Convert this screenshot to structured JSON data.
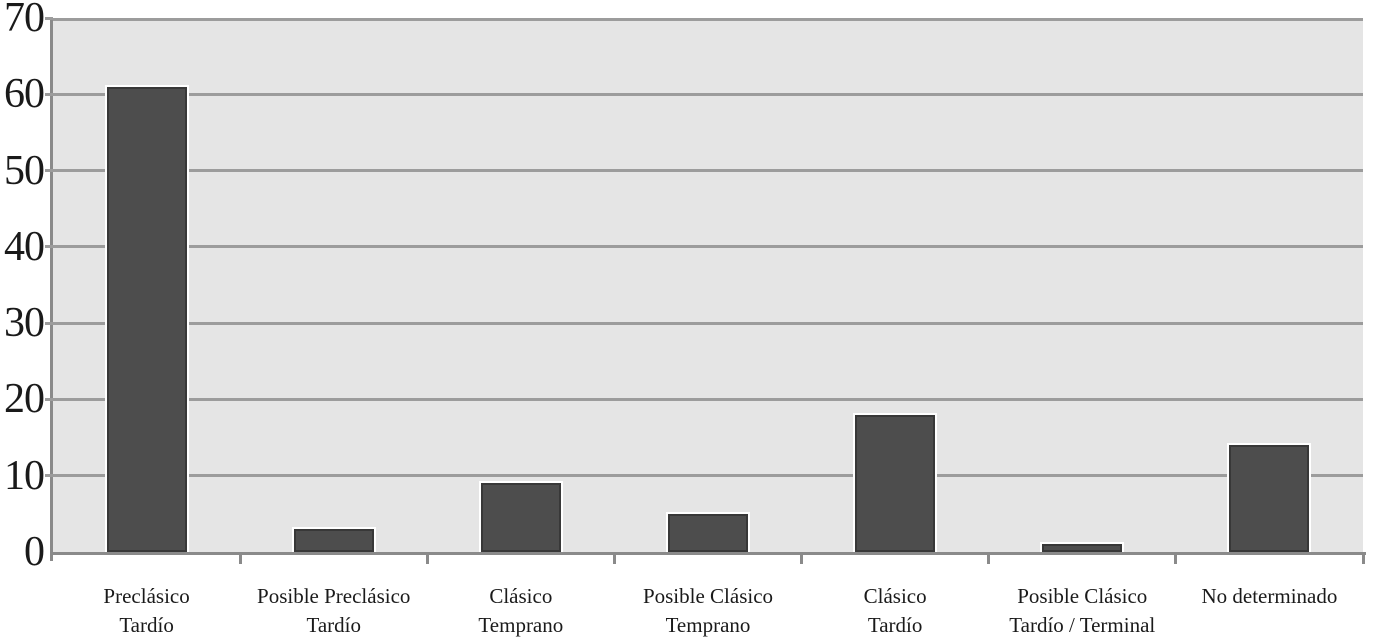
{
  "chart_data": {
    "type": "bar",
    "title": "",
    "xlabel": "",
    "ylabel": "",
    "categories": [
      "Preclásico Tardío",
      "Posible Preclásico Tardío",
      "Clásico Temprano",
      "Posible Clásico Temprano",
      "Clásico Tardío",
      "Posible Clásico Tardío / Terminal",
      "No determinado"
    ],
    "category_label_lines": [
      [
        "Preclásico",
        "Tardío"
      ],
      [
        "Posible Preclásico",
        "Tardío"
      ],
      [
        "Clásico",
        "Temprano"
      ],
      [
        "Posible Clásico",
        "Temprano"
      ],
      [
        "Clásico",
        "Tardío"
      ],
      [
        "Posible Clásico",
        "Tardío / Terminal"
      ],
      [
        "No determinado"
      ]
    ],
    "values": [
      61,
      3,
      9,
      5,
      18,
      1,
      14
    ],
    "ylim": [
      0,
      70
    ],
    "yticks": [
      0,
      10,
      20,
      30,
      40,
      50,
      60,
      70
    ],
    "grid": true,
    "legend_position": "none",
    "colors": {
      "bar_fill": "#4d4d4d",
      "bar_border": "#383838",
      "plot_bg": "#e5e5e5",
      "gridline": "#9c9c9c",
      "axis": "#8a8a8a",
      "text": "#1a1a1a",
      "page_bg": "#ffffff"
    }
  }
}
